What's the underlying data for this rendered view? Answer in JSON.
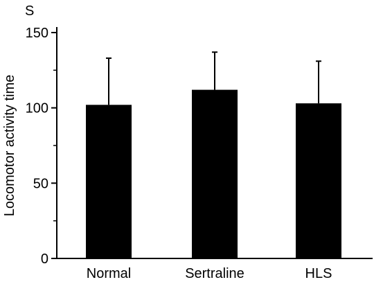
{
  "chart_data": {
    "type": "bar",
    "title": "",
    "unit_label": "S",
    "ylabel": "Locomotor activity time",
    "xlabel": "",
    "categories": [
      "Normal",
      "Sertraline",
      "HLS"
    ],
    "values": [
      102,
      112,
      103
    ],
    "error_upper": [
      133,
      137,
      131
    ],
    "ylim": [
      0,
      150
    ],
    "yticks": [
      0,
      50,
      100,
      150
    ],
    "ytick_labels": [
      "0",
      "50",
      "100",
      "150"
    ],
    "bar_color": "#000000",
    "grid": false,
    "legend": "none"
  }
}
